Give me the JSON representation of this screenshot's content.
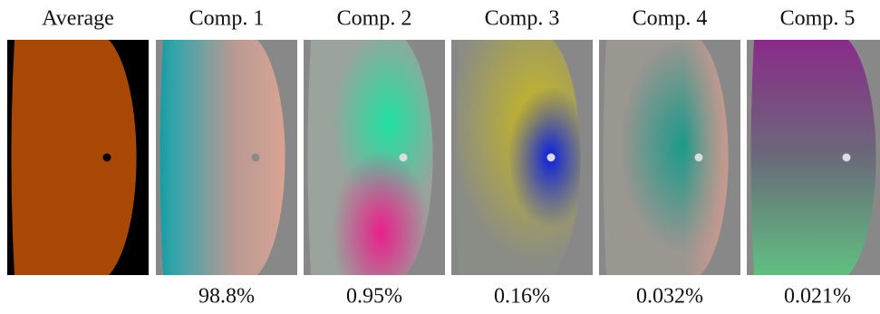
{
  "panels": [
    {
      "title": "Average"
    },
    {
      "title": "Comp. 1",
      "caption": "98.8%"
    },
    {
      "title": "Comp. 2",
      "caption": "0.95%"
    },
    {
      "title": "Comp. 3",
      "caption": "0.16%"
    },
    {
      "title": "Comp. 4",
      "caption": "0.032%"
    },
    {
      "title": "Comp. 5",
      "caption": "0.021%"
    }
  ]
}
